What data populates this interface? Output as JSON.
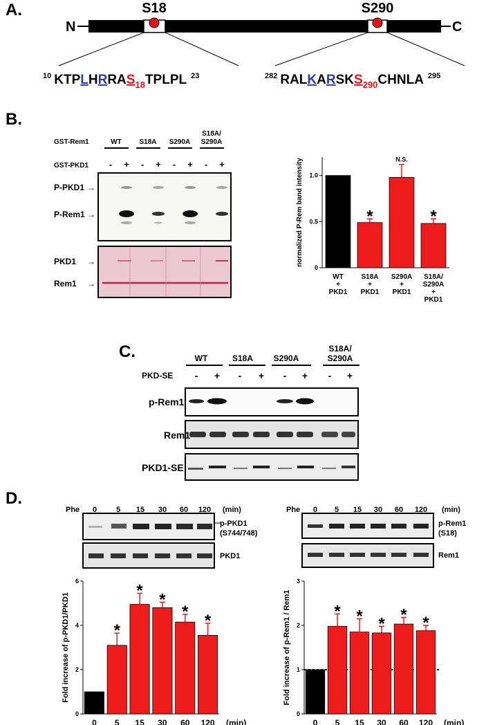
{
  "panel_a": {
    "label": "A.",
    "n_term": "N",
    "c_term": "C",
    "site1_label": "S18",
    "site2_label": "S290",
    "seq1": {
      "start": "10",
      "end": "23",
      "pre": "KTP",
      "k1": "L",
      "mid1": "H",
      "k2": "R",
      "mid2": "RA",
      "ser": "S",
      "ser_sub": "18",
      "post": "TPLPL"
    },
    "seq2": {
      "start": "282",
      "end": "295",
      "pre": "RAL",
      "k1": "K",
      "mid1": "A",
      "k2": "R",
      "mid2": "SK",
      "ser": "S",
      "ser_sub": "290",
      "post": "CHNLA"
    }
  },
  "panel_b": {
    "label": "B.",
    "row1_label": "GST-Rem1",
    "row2_label": "GST-PKD1",
    "groups": [
      "WT",
      "S18A",
      "S290A",
      "S18A/",
      "S290A"
    ],
    "signs": [
      "-",
      "+",
      "-",
      "+",
      "-",
      "+",
      "-",
      "+"
    ],
    "blot_labels": [
      "P-PKD1",
      "P-Rem1",
      "PKD1",
      "Rem1"
    ],
    "arrow": "→"
  },
  "panel_c": {
    "label": "C.",
    "groups": [
      "WT",
      "S18A",
      "S290A",
      "S18A/",
      "S290A"
    ],
    "treat_label": "PKD-SE",
    "signs": [
      "-",
      "+",
      "-",
      "+",
      "-",
      "+",
      "-",
      "+"
    ],
    "blot_labels": [
      "p-Rem1",
      "Rem1",
      "PKD1-SE"
    ]
  },
  "panel_d": {
    "label": "D.",
    "treat_label": "Phe",
    "times": [
      "0",
      "5",
      "15",
      "30",
      "60",
      "120"
    ],
    "unit": "(min)",
    "left_blot_labels": [
      "p-PKD1",
      "(S744/748)",
      "PKD1"
    ],
    "right_blot_labels": [
      "p-Rem1",
      "(S18)",
      "Rem1"
    ]
  },
  "chart_data": [
    {
      "type": "bar",
      "panel": "B",
      "ylabel": "normalized P-Rem band intensity",
      "categories": [
        [
          "WT",
          "+",
          "PKD1"
        ],
        [
          "S18A",
          "+",
          "PKD1"
        ],
        [
          "S290A",
          "+",
          "PKD1"
        ],
        [
          "S18A/",
          "S290A",
          "+",
          "PKD1"
        ]
      ],
      "values": [
        1.0,
        0.49,
        0.98,
        0.48
      ],
      "errors": [
        0,
        0.04,
        0.14,
        0.05
      ],
      "colors": [
        "#000000",
        "#ee1c1c",
        "#ee1c1c",
        "#ee1c1c"
      ],
      "annotations": [
        "",
        "*",
        "N.S.",
        "*"
      ],
      "ylim": [
        0,
        1.2
      ],
      "yticks": [
        "0",
        "0.5",
        "1.0"
      ]
    },
    {
      "type": "bar",
      "panel": "D-left",
      "ylabel": "Fold increase of p-PKD1/PKD1",
      "xlabel": "(min)",
      "categories": [
        "0",
        "5",
        "15",
        "30",
        "60",
        "120"
      ],
      "values": [
        1.0,
        3.1,
        4.95,
        4.8,
        4.15,
        3.55
      ],
      "errors": [
        0,
        0.55,
        0.5,
        0.25,
        0.35,
        0.55
      ],
      "colors": [
        "#000000",
        "#ee1c1c",
        "#ee1c1c",
        "#ee1c1c",
        "#ee1c1c",
        "#ee1c1c"
      ],
      "annotations": [
        "",
        "*",
        "*",
        "*",
        "*",
        "*"
      ],
      "ylim": [
        0,
        6
      ],
      "yticks": [
        "0",
        "2",
        "4",
        "6"
      ]
    },
    {
      "type": "bar",
      "panel": "D-right",
      "ylabel": "Fold increase of p-Rem1 / Rem1",
      "xlabel": "(min)",
      "categories": [
        "0",
        "5",
        "15",
        "30",
        "60",
        "120"
      ],
      "values": [
        1.0,
        1.98,
        1.85,
        1.83,
        2.03,
        1.88
      ],
      "errors": [
        0,
        0.28,
        0.3,
        0.15,
        0.15,
        0.12
      ],
      "colors": [
        "#000000",
        "#ee1c1c",
        "#ee1c1c",
        "#ee1c1c",
        "#ee1c1c",
        "#ee1c1c"
      ],
      "annotations": [
        "",
        "*",
        "*",
        "*",
        "*",
        "*"
      ],
      "ylim": [
        0,
        3
      ],
      "yticks": [
        "0",
        "1",
        "2",
        "3"
      ],
      "reference_line": 1
    }
  ]
}
